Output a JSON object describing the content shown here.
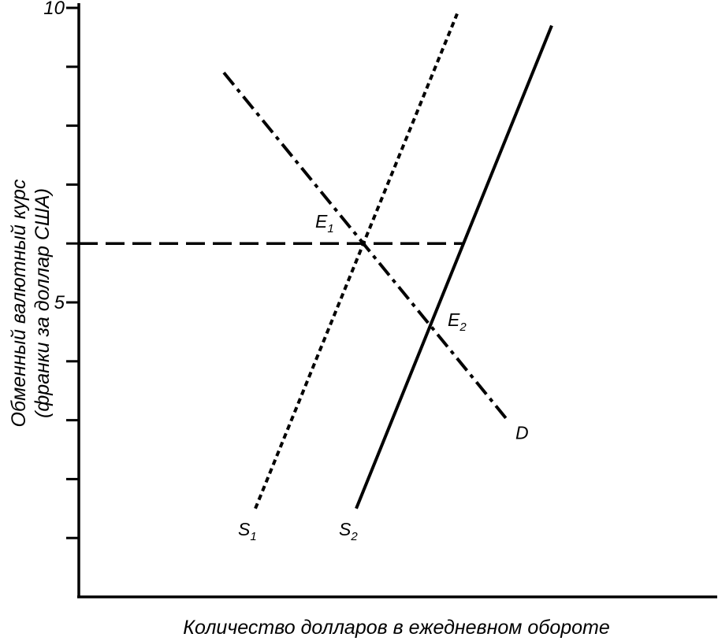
{
  "chart_data": {
    "type": "line",
    "title": "",
    "xlabel": "Количество долларов в ежедневном обороте",
    "ylabel_lines": [
      "Обменный валютный курс",
      "(франки за доллар США)"
    ],
    "ylim": [
      0,
      10
    ],
    "xlim": [
      0,
      10
    ],
    "yticks": [
      1,
      2,
      3,
      4,
      5,
      6,
      7,
      8,
      9,
      10
    ],
    "ytick_labels": [
      {
        "value": 5,
        "label": "5"
      },
      {
        "value": 10,
        "label": "10"
      }
    ],
    "grid": false,
    "series": [
      {
        "name": "S1",
        "label_main": "S",
        "label_sub": "1",
        "style": "dotted",
        "x": [
          2.8,
          6.0
        ],
        "y": [
          1.5,
          9.9
        ]
      },
      {
        "name": "S2",
        "label_main": "S",
        "label_sub": "2",
        "style": "solid",
        "x": [
          4.4,
          7.5
        ],
        "y": [
          1.5,
          9.7
        ]
      },
      {
        "name": "D",
        "label_main": "D",
        "label_sub": "",
        "style": "dashdot",
        "x": [
          2.3,
          6.8
        ],
        "y": [
          8.9,
          3.0
        ]
      }
    ],
    "reference_lines": [
      {
        "style": "dashed",
        "x": [
          0,
          6.1
        ],
        "y": [
          6.0,
          6.0
        ]
      }
    ],
    "points": [
      {
        "name": "E1",
        "label_main": "E",
        "label_sub": "1",
        "x": 4.8,
        "y": 6.0
      },
      {
        "name": "E2",
        "label_main": "E",
        "label_sub": "2",
        "x": 5.6,
        "y": 5.0
      }
    ]
  }
}
